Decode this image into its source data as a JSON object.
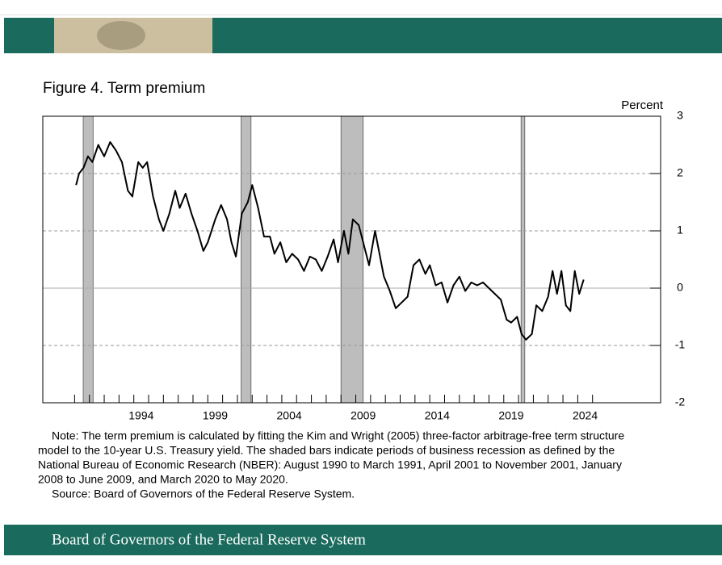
{
  "chart_data": {
    "type": "line",
    "title": "Figure 4. Term premium",
    "y_label": "Percent",
    "xlim": [
      1987.85,
      2029.6
    ],
    "ylim": [
      -2,
      3
    ],
    "yticks": [
      -2,
      -1,
      0,
      1,
      2,
      3
    ],
    "xticks": [
      {
        "value": 1994.5,
        "label": "1994"
      },
      {
        "value": 1999.5,
        "label": "1999"
      },
      {
        "value": 2004.5,
        "label": "2004"
      },
      {
        "value": 2009.5,
        "label": "2009"
      },
      {
        "value": 2014.5,
        "label": "2014"
      },
      {
        "value": 2019.5,
        "label": "2019"
      },
      {
        "value": 2024.5,
        "label": "2024"
      }
    ],
    "xminorticks": [
      1990,
      1991,
      1992,
      1993,
      1994,
      1995,
      1996,
      1997,
      1998,
      1999,
      2000,
      2001,
      2002,
      2003,
      2004,
      2005,
      2006,
      2007,
      2008,
      2009,
      2010,
      2011,
      2012,
      2013,
      2014,
      2015,
      2016,
      2017,
      2018,
      2019,
      2020,
      2021,
      2022,
      2023,
      2024,
      2025
    ],
    "grid": true,
    "recession_color": "#bdbdbd",
    "recessions": [
      [
        1990.58,
        1991.25
      ],
      [
        2001.25,
        2001.92
      ],
      [
        2008.0,
        2009.5
      ],
      [
        2020.17,
        2020.42
      ]
    ],
    "x": [
      1990.1,
      1990.3,
      1990.6,
      1990.9,
      1991.2,
      1991.6,
      1992.0,
      1992.4,
      1992.8,
      1993.2,
      1993.6,
      1993.9,
      1994.3,
      1994.6,
      1994.9,
      1995.3,
      1995.7,
      1996.0,
      1996.4,
      1996.8,
      1997.1,
      1997.5,
      1997.9,
      1998.3,
      1998.7,
      1999.0,
      1999.5,
      1999.9,
      2000.3,
      2000.6,
      2000.9,
      2001.3,
      2001.7,
      2002.0,
      2002.4,
      2002.8,
      2003.2,
      2003.5,
      2003.9,
      2004.3,
      2004.7,
      2005.1,
      2005.5,
      2005.9,
      2006.3,
      2006.7,
      2007.1,
      2007.5,
      2007.8,
      2008.2,
      2008.5,
      2008.8,
      2009.2,
      2009.5,
      2009.9,
      2010.3,
      2010.6,
      2010.9,
      2011.3,
      2011.7,
      2012.1,
      2012.5,
      2012.9,
      2013.3,
      2013.7,
      2014.0,
      2014.4,
      2014.8,
      2015.2,
      2015.6,
      2016.0,
      2016.4,
      2016.8,
      2017.2,
      2017.6,
      2018.0,
      2018.4,
      2018.8,
      2019.2,
      2019.5,
      2019.9,
      2020.2,
      2020.5,
      2020.9,
      2021.2,
      2021.6,
      2022.0,
      2022.3,
      2022.6,
      2022.9,
      2023.2,
      2023.5,
      2023.8,
      2024.1,
      2024.4
    ],
    "series": [
      {
        "color": "#000000",
        "values": [
          1.8,
          2.0,
          2.1,
          2.3,
          2.2,
          2.5,
          2.3,
          2.55,
          2.4,
          2.2,
          1.7,
          1.6,
          2.2,
          2.1,
          2.2,
          1.6,
          1.2,
          1.0,
          1.3,
          1.7,
          1.4,
          1.65,
          1.3,
          1.0,
          0.65,
          0.8,
          1.2,
          1.45,
          1.2,
          0.8,
          0.55,
          1.3,
          1.5,
          1.8,
          1.4,
          0.9,
          0.9,
          0.6,
          0.8,
          0.45,
          0.6,
          0.5,
          0.3,
          0.55,
          0.5,
          0.3,
          0.55,
          0.85,
          0.45,
          1.0,
          0.6,
          1.2,
          1.1,
          0.8,
          0.4,
          1.0,
          0.6,
          0.2,
          -0.05,
          -0.35,
          -0.25,
          -0.15,
          0.4,
          0.5,
          0.25,
          0.4,
          0.05,
          0.1,
          -0.25,
          0.05,
          0.2,
          -0.05,
          0.1,
          0.05,
          0.1,
          0.0,
          -0.1,
          -0.2,
          -0.55,
          -0.6,
          -0.5,
          -0.8,
          -0.9,
          -0.8,
          -0.3,
          -0.4,
          -0.15,
          0.3,
          -0.1,
          0.3,
          -0.3,
          -0.4,
          0.3,
          -0.1,
          0.15
        ]
      }
    ],
    "note": [
      "Note: The term premium is calculated by fitting the Kim and Wright (2005) three-factor arbitrage-free term structure",
      "model to the 10-year U.S. Treasury yield. The shaded bars indicate periods of business recession as defined by the",
      "National Bureau of Economic Research (NBER): August 1990 to March 1991, April 2001 to November 2001, January",
      "2008 to June 2009, and March 2020 to May 2020."
    ],
    "source": "Source: Board of Governors of the Federal Reserve System."
  },
  "footer": "Board of Governors of the Federal Reserve System"
}
